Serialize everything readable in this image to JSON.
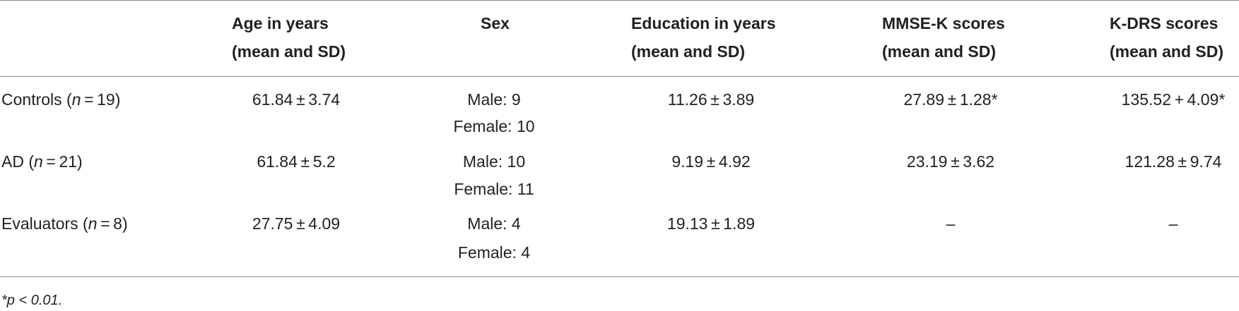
{
  "table": {
    "header": [
      [
        "Age in years",
        "(mean and SD)"
      ],
      [
        "Sex"
      ],
      [
        "Education in years",
        "(mean and SD)"
      ],
      [
        "MMSE-K scores",
        "(mean and SD)"
      ],
      [
        "K-DRS scores",
        "(mean and SD)"
      ]
    ],
    "rows": [
      {
        "label": [
          "Controls (",
          "n",
          " = 19)"
        ],
        "cells": [
          [
            "61.84 ± 3.74"
          ],
          [
            "Male: 9",
            "Female: 10"
          ],
          [
            "11.26 ± 3.89"
          ],
          [
            "27.89 ± 1.28*"
          ],
          [
            "135.52 + 4.09*"
          ]
        ]
      },
      {
        "label": [
          "AD (",
          "n",
          " = 21)"
        ],
        "cells": [
          [
            "61.84 ± 5.2"
          ],
          [
            "Male: 10",
            "Female: 11"
          ],
          [
            "9.19 ± 4.92"
          ],
          [
            "23.19 ± 3.62"
          ],
          [
            "121.28 ± 9.74"
          ]
        ]
      },
      {
        "label": [
          "Evaluators (",
          "n",
          " = 8)"
        ],
        "cells": [
          [
            "27.75 ± 4.09"
          ],
          [
            "Male: 4",
            "Female: 4"
          ],
          [
            "19.13 ± 1.89"
          ],
          [
            "–"
          ],
          [
            "–"
          ]
        ]
      }
    ],
    "footnote": "*p < 0.01."
  }
}
